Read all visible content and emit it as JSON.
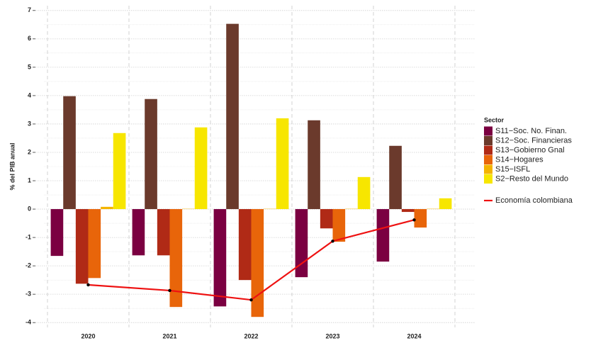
{
  "chart_data": {
    "type": "bar",
    "y_label": "% del PIB anual",
    "legend_title": "Sector",
    "legend": "right",
    "grid": true,
    "categories": [
      "2020",
      "2021",
      "2022",
      "2023",
      "2024"
    ],
    "ylim": [
      -4.17,
      7.17
    ],
    "yticks": [
      -4,
      -3,
      -2,
      -1,
      0,
      1,
      2,
      3,
      4,
      5,
      6,
      7
    ],
    "series": [
      {
        "name": "S11−Soc. No. Finan.",
        "color": "#7b0041",
        "values": [
          -1.65,
          -1.63,
          -3.43,
          -2.4,
          -1.85
        ]
      },
      {
        "name": "S12−Soc. Financieras",
        "color": "#6b3a2c",
        "values": [
          3.98,
          3.88,
          6.53,
          3.13,
          2.23
        ]
      },
      {
        "name": "S13−Gobierno Gnal",
        "color": "#b02a16",
        "values": [
          -2.63,
          -1.63,
          -2.5,
          -0.68,
          -0.1
        ]
      },
      {
        "name": "S14−Hogares",
        "color": "#e8650a",
        "values": [
          -2.43,
          -3.45,
          -3.8,
          -1.15,
          -0.65
        ]
      },
      {
        "name": "S15−ISFL",
        "color": "#f4b400",
        "values": [
          0.08,
          0.01,
          0.01,
          0.01,
          0.01
        ]
      },
      {
        "name": "S2−Resto del Mundo",
        "color": "#f7e600",
        "values": [
          2.68,
          2.88,
          3.2,
          1.13,
          0.38
        ]
      },
      {
        "name": "Economía colombiana",
        "color": "#ee1111",
        "type": "line",
        "values": [
          -2.67,
          -2.87,
          -3.2,
          -1.13,
          -0.38
        ]
      }
    ]
  }
}
